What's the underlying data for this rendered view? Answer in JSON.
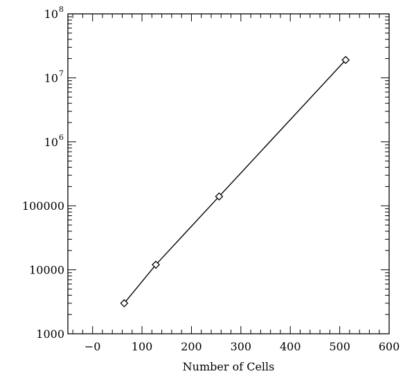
{
  "chart_data": {
    "type": "scatter",
    "title": "",
    "xlabel": "Number of Cells",
    "ylabel": "",
    "xlim": [
      -50,
      600
    ],
    "ylim": [
      1000,
      100000000
    ],
    "yscale": "log",
    "grid": false,
    "legend": "none",
    "line_color": "#000000",
    "marker": "diamond",
    "x_ticks": [
      {
        "value": 0,
        "label": "−0"
      },
      {
        "value": 100,
        "label": "100"
      },
      {
        "value": 200,
        "label": "200"
      },
      {
        "value": 300,
        "label": "300"
      },
      {
        "value": 400,
        "label": "400"
      },
      {
        "value": 500,
        "label": "500"
      },
      {
        "value": 600,
        "label": "600"
      }
    ],
    "y_ticks": [
      {
        "value": 1000,
        "label": "1000"
      },
      {
        "value": 10000,
        "label": "10000"
      },
      {
        "value": 100000,
        "label": "100000"
      },
      {
        "value": 1000000,
        "label": "10",
        "sup": "6"
      },
      {
        "value": 10000000,
        "label": "10",
        "sup": "7"
      },
      {
        "value": 100000000,
        "label": "10",
        "sup": "8"
      }
    ],
    "series": [
      {
        "x": [
          64,
          128,
          256,
          512
        ],
        "y": [
          3000,
          12000,
          140000,
          19000000
        ]
      }
    ]
  }
}
